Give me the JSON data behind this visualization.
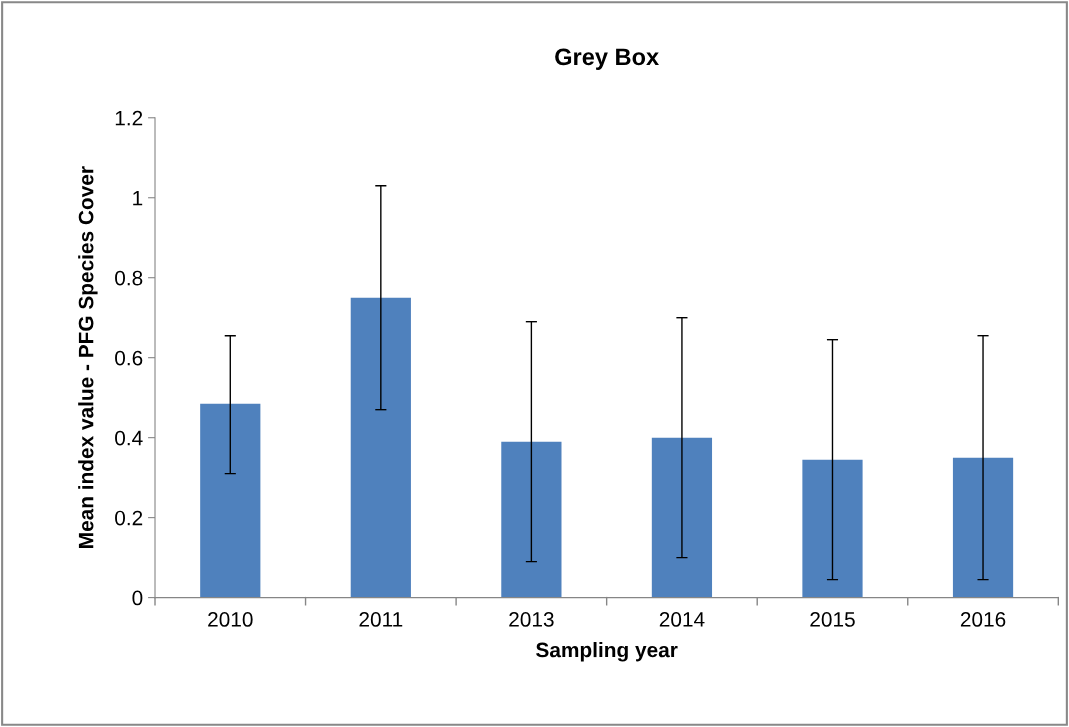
{
  "chart_data": {
    "type": "bar",
    "title": "Grey Box",
    "xlabel": "Sampling year",
    "ylabel": "Mean index value - PFG Species Cover",
    "categories": [
      "2010",
      "2011",
      "2013",
      "2014",
      "2015",
      "2016"
    ],
    "values": [
      0.485,
      0.75,
      0.39,
      0.4,
      0.345,
      0.35
    ],
    "errors": [
      [
        0.31,
        0.655
      ],
      [
        0.47,
        1.03
      ],
      [
        0.09,
        0.69
      ],
      [
        0.1,
        0.7
      ],
      [
        0.045,
        0.645
      ],
      [
        0.045,
        0.655
      ]
    ],
    "color": "#4f81bd",
    "ylim": [
      0,
      1.2
    ],
    "yticks": [
      {
        "value": 0,
        "label": "0"
      },
      0.2,
      0.4,
      0.6,
      0.8,
      {
        "value": 1,
        "label": "1"
      },
      1.2
    ],
    "grid": false,
    "legend": false
  }
}
